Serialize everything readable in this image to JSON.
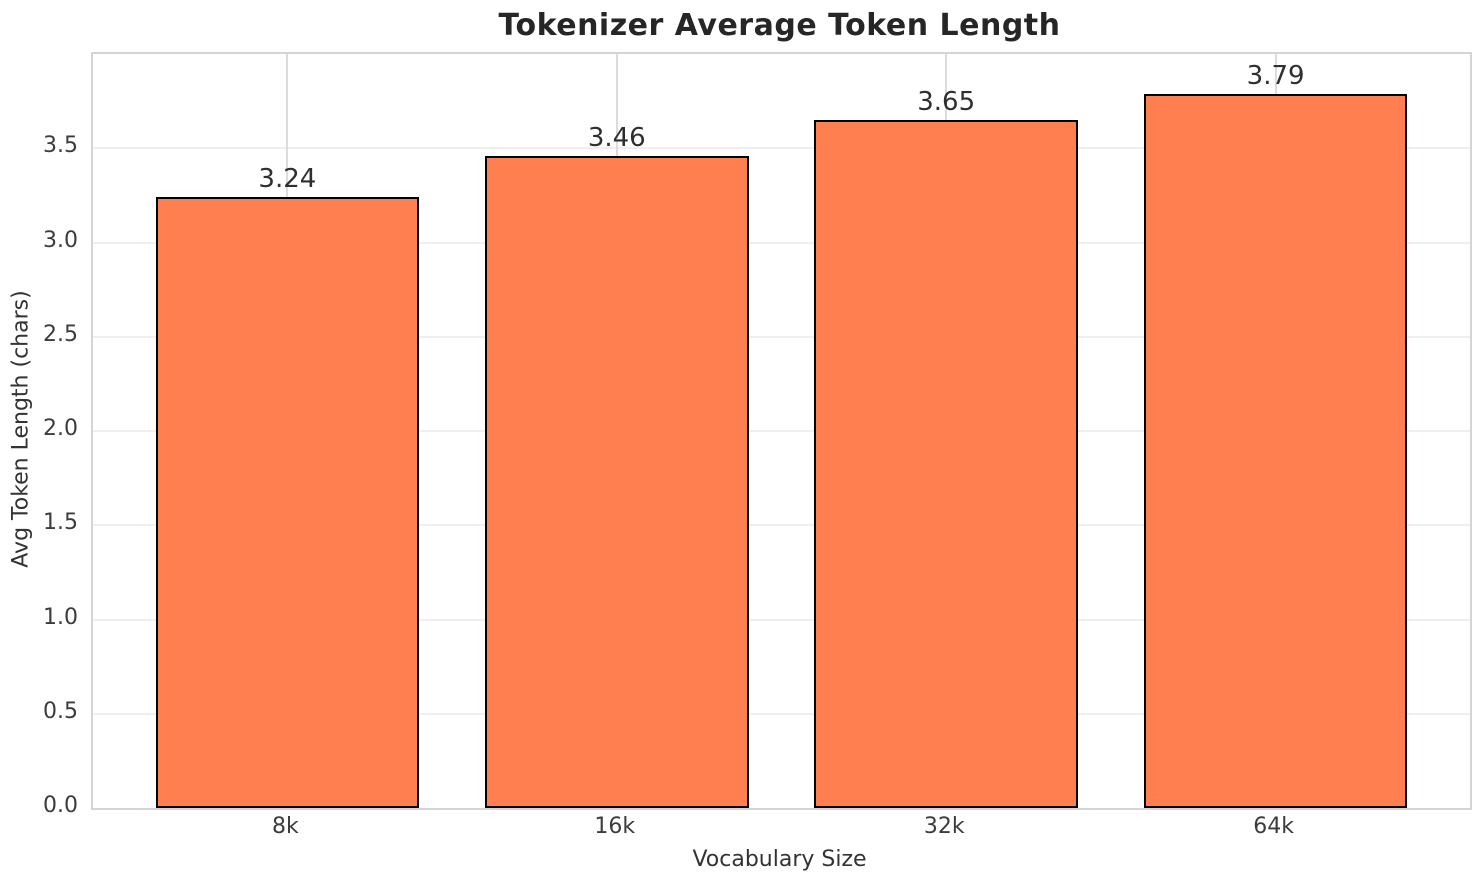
{
  "chart_data": {
    "type": "bar",
    "title": "Tokenizer Average Token Length",
    "xlabel": "Vocabulary Size",
    "ylabel": "Avg Token Length (chars)",
    "categories": [
      "8k",
      "16k",
      "32k",
      "64k"
    ],
    "values": [
      3.24,
      3.46,
      3.65,
      3.79
    ],
    "bar_labels": [
      "3.24",
      "3.46",
      "3.65",
      "3.79"
    ],
    "ylim": [
      0,
      4.0
    ],
    "yticks": [
      0.0,
      0.5,
      1.0,
      1.5,
      2.0,
      2.5,
      3.0,
      3.5
    ],
    "ytick_labels": [
      "0.0",
      "0.5",
      "1.0",
      "1.5",
      "2.0",
      "2.5",
      "3.0",
      "3.5"
    ],
    "grid": true,
    "legend_position": "none",
    "colors": {
      "bar_fill": "#FF7F50",
      "bar_edge": "#000000",
      "grid_horizontal": "#efefef",
      "grid_vertical": "#dcdcdc",
      "spine": "#d4d4d4",
      "tick_text": "#3c3c3c",
      "label_text": "#333333",
      "title_text": "#262626",
      "background": "#ffffff"
    }
  }
}
